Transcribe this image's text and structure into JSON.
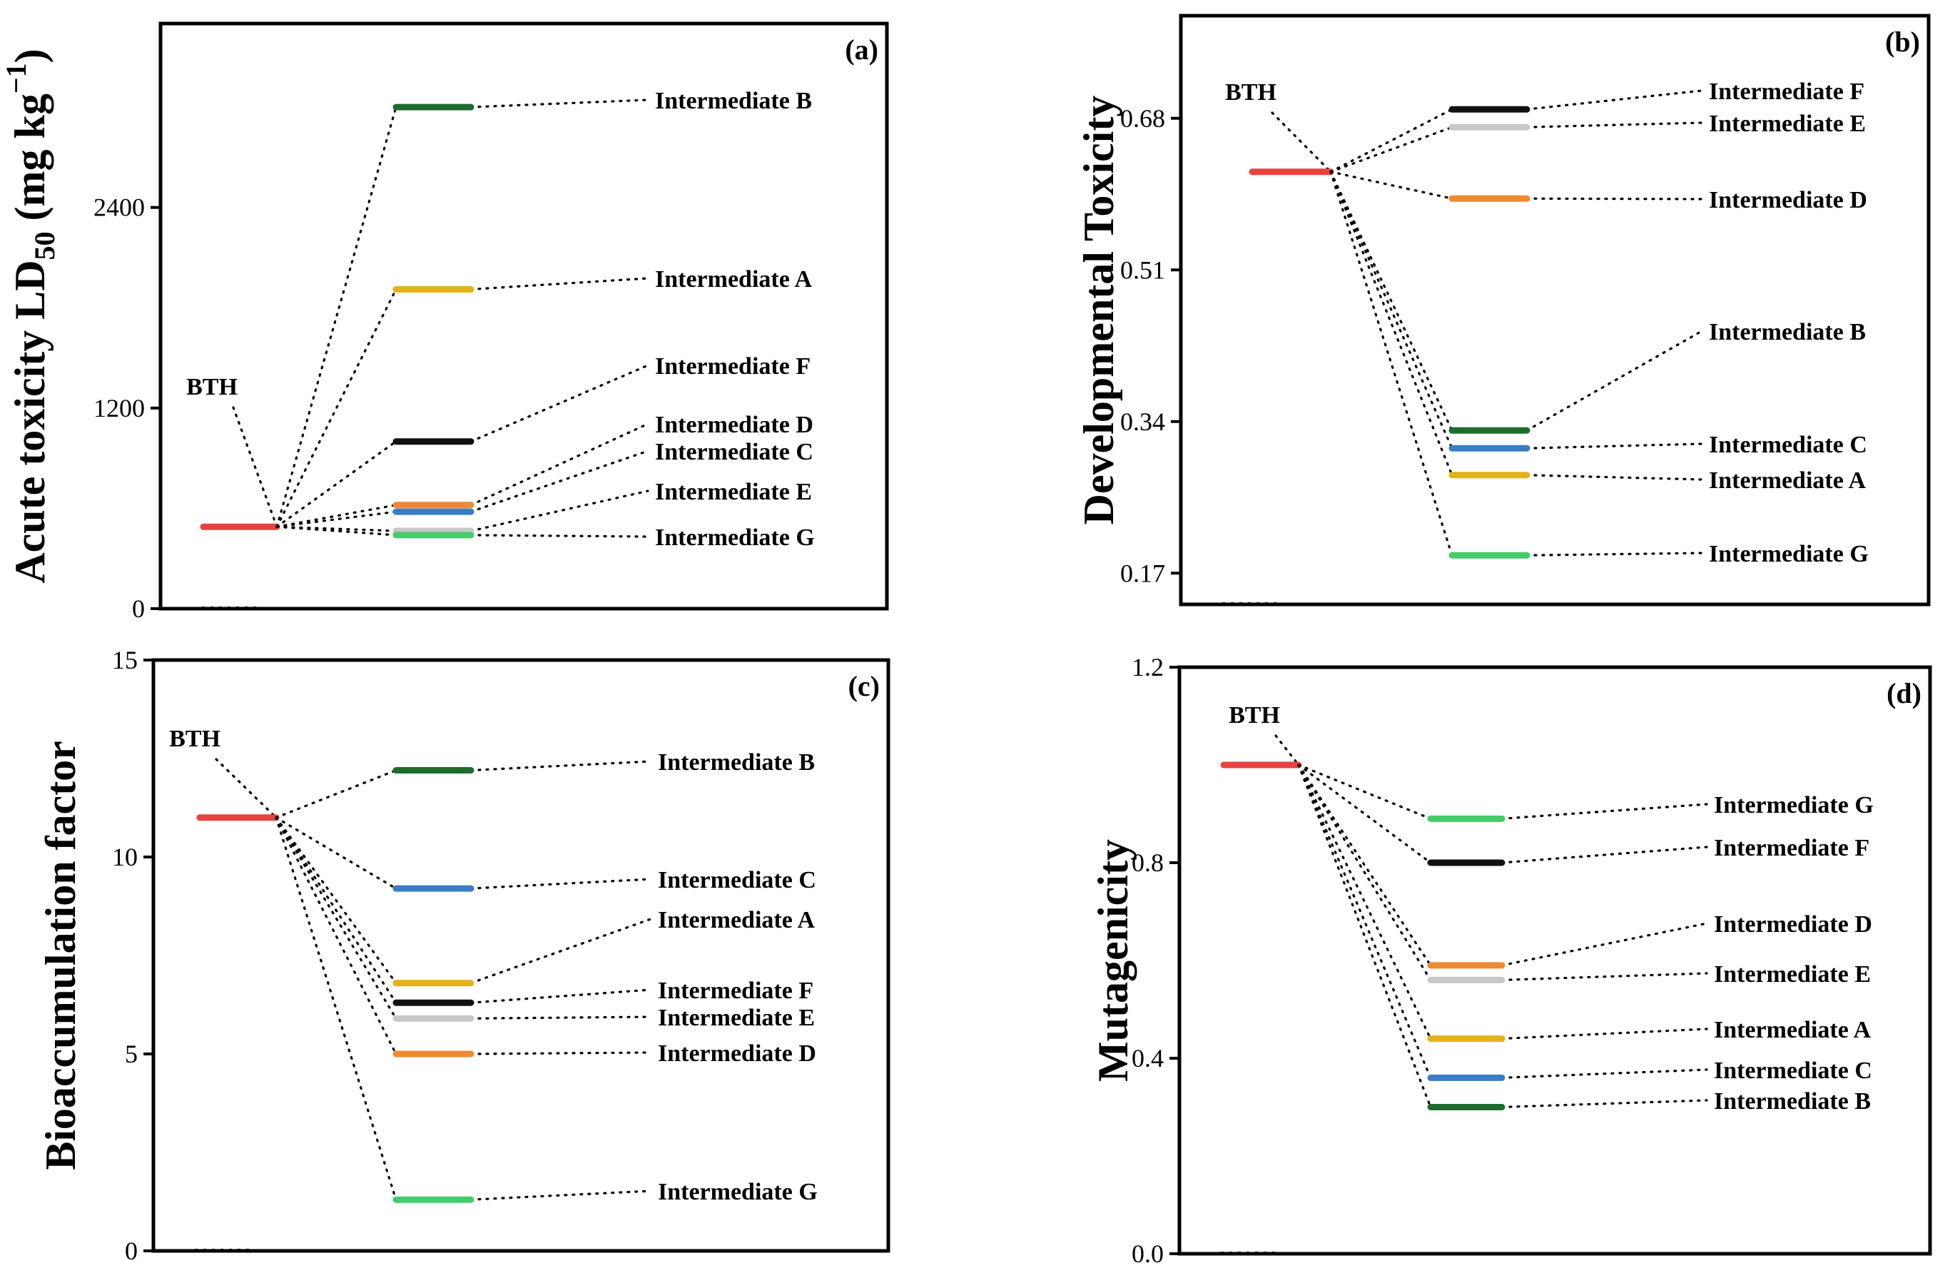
{
  "colors": {
    "BTH": "#e8423f",
    "Intermediate A": "#e3b31a",
    "Intermediate B": "#1e6b2e",
    "Intermediate C": "#3a7cc6",
    "Intermediate D": "#ee8a32",
    "Intermediate E": "#c8c8c8",
    "Intermediate F": "#111111",
    "Intermediate G": "#45cc6a"
  },
  "chart_data": [
    {
      "type": "energy-level",
      "panel_label": "(a)",
      "title": "",
      "xlabel": "",
      "ylabel": "Acute toxicity LD50 (mg kg−1)",
      "ylabel_parts": [
        "Acute toxicity LD",
        "50",
        " (mg kg",
        "−1",
        ")"
      ],
      "ylim": [
        0,
        3500
      ],
      "yticks": [
        0,
        1200,
        2400
      ],
      "ytick_labels": [
        "0",
        "1200",
        "2400"
      ],
      "reference": {
        "name": "BTH",
        "label": "BTH",
        "value": 490
      },
      "levels": [
        {
          "name": "Intermediate B",
          "value": 3000
        },
        {
          "name": "Intermediate A",
          "value": 1910
        },
        {
          "name": "Intermediate F",
          "value": 1000
        },
        {
          "name": "Intermediate D",
          "value": 620
        },
        {
          "name": "Intermediate C",
          "value": 580
        },
        {
          "name": "Intermediate E",
          "value": 465
        },
        {
          "name": "Intermediate G",
          "value": 440
        }
      ],
      "label_order": [
        "Intermediate B",
        "Intermediate A",
        "Intermediate F",
        "Intermediate D",
        "Intermediate C",
        "Intermediate E",
        "Intermediate G"
      ]
    },
    {
      "type": "energy-level",
      "panel_label": "(b)",
      "title": "",
      "xlabel": "",
      "ylabel": "Developmental Toxicity",
      "ylim": [
        0.135,
        0.795
      ],
      "yticks": [
        0.17,
        0.34,
        0.51,
        0.68
      ],
      "ytick_labels": [
        "0.17",
        "0.34",
        "0.51",
        "0.68"
      ],
      "reference": {
        "name": "BTH",
        "label": "BTH",
        "value": 0.62
      },
      "levels": [
        {
          "name": "Intermediate F",
          "value": 0.69
        },
        {
          "name": "Intermediate E",
          "value": 0.67
        },
        {
          "name": "Intermediate D",
          "value": 0.59
        },
        {
          "name": "Intermediate B",
          "value": 0.33
        },
        {
          "name": "Intermediate C",
          "value": 0.31
        },
        {
          "name": "Intermediate A",
          "value": 0.28
        },
        {
          "name": "Intermediate G",
          "value": 0.19
        }
      ],
      "label_order": [
        "Intermediate F",
        "Intermediate E",
        "Intermediate D",
        "Intermediate B",
        "Intermediate C",
        "Intermediate A",
        "Intermediate G"
      ]
    },
    {
      "type": "energy-level",
      "panel_label": "(c)",
      "title": "",
      "xlabel": "",
      "ylabel": "Bioaccumulation factor",
      "ylim": [
        0,
        15
      ],
      "yticks": [
        0,
        5,
        10,
        15
      ],
      "ytick_labels": [
        "0",
        "5",
        "10",
        "15"
      ],
      "reference": {
        "name": "BTH",
        "label": "BTH",
        "value": 11.0
      },
      "levels": [
        {
          "name": "Intermediate B",
          "value": 12.2
        },
        {
          "name": "Intermediate C",
          "value": 9.2
        },
        {
          "name": "Intermediate A",
          "value": 6.8
        },
        {
          "name": "Intermediate F",
          "value": 6.3
        },
        {
          "name": "Intermediate E",
          "value": 5.9
        },
        {
          "name": "Intermediate D",
          "value": 5.0
        },
        {
          "name": "Intermediate G",
          "value": 1.3
        }
      ],
      "label_order": [
        "Intermediate B",
        "Intermediate C",
        "Intermediate A",
        "Intermediate F",
        "Intermediate E",
        "Intermediate D",
        "Intermediate G"
      ]
    },
    {
      "type": "energy-level",
      "panel_label": "(d)",
      "title": "",
      "xlabel": "",
      "ylabel": "Mutagenicity",
      "ylim": [
        0,
        1.2
      ],
      "yticks": [
        0.0,
        0.4,
        0.8,
        1.2
      ],
      "ytick_labels": [
        "0.0",
        "0.4",
        "0.8",
        "1.2"
      ],
      "reference": {
        "name": "BTH",
        "label": "BTH",
        "value": 1.0
      },
      "levels": [
        {
          "name": "Intermediate G",
          "value": 0.89
        },
        {
          "name": "Intermediate F",
          "value": 0.8
        },
        {
          "name": "Intermediate D",
          "value": 0.59
        },
        {
          "name": "Intermediate E",
          "value": 0.56
        },
        {
          "name": "Intermediate A",
          "value": 0.44
        },
        {
          "name": "Intermediate C",
          "value": 0.36
        },
        {
          "name": "Intermediate B",
          "value": 0.3
        }
      ],
      "label_order": [
        "Intermediate G",
        "Intermediate F",
        "Intermediate D",
        "Intermediate E",
        "Intermediate A",
        "Intermediate C",
        "Intermediate B"
      ]
    }
  ]
}
